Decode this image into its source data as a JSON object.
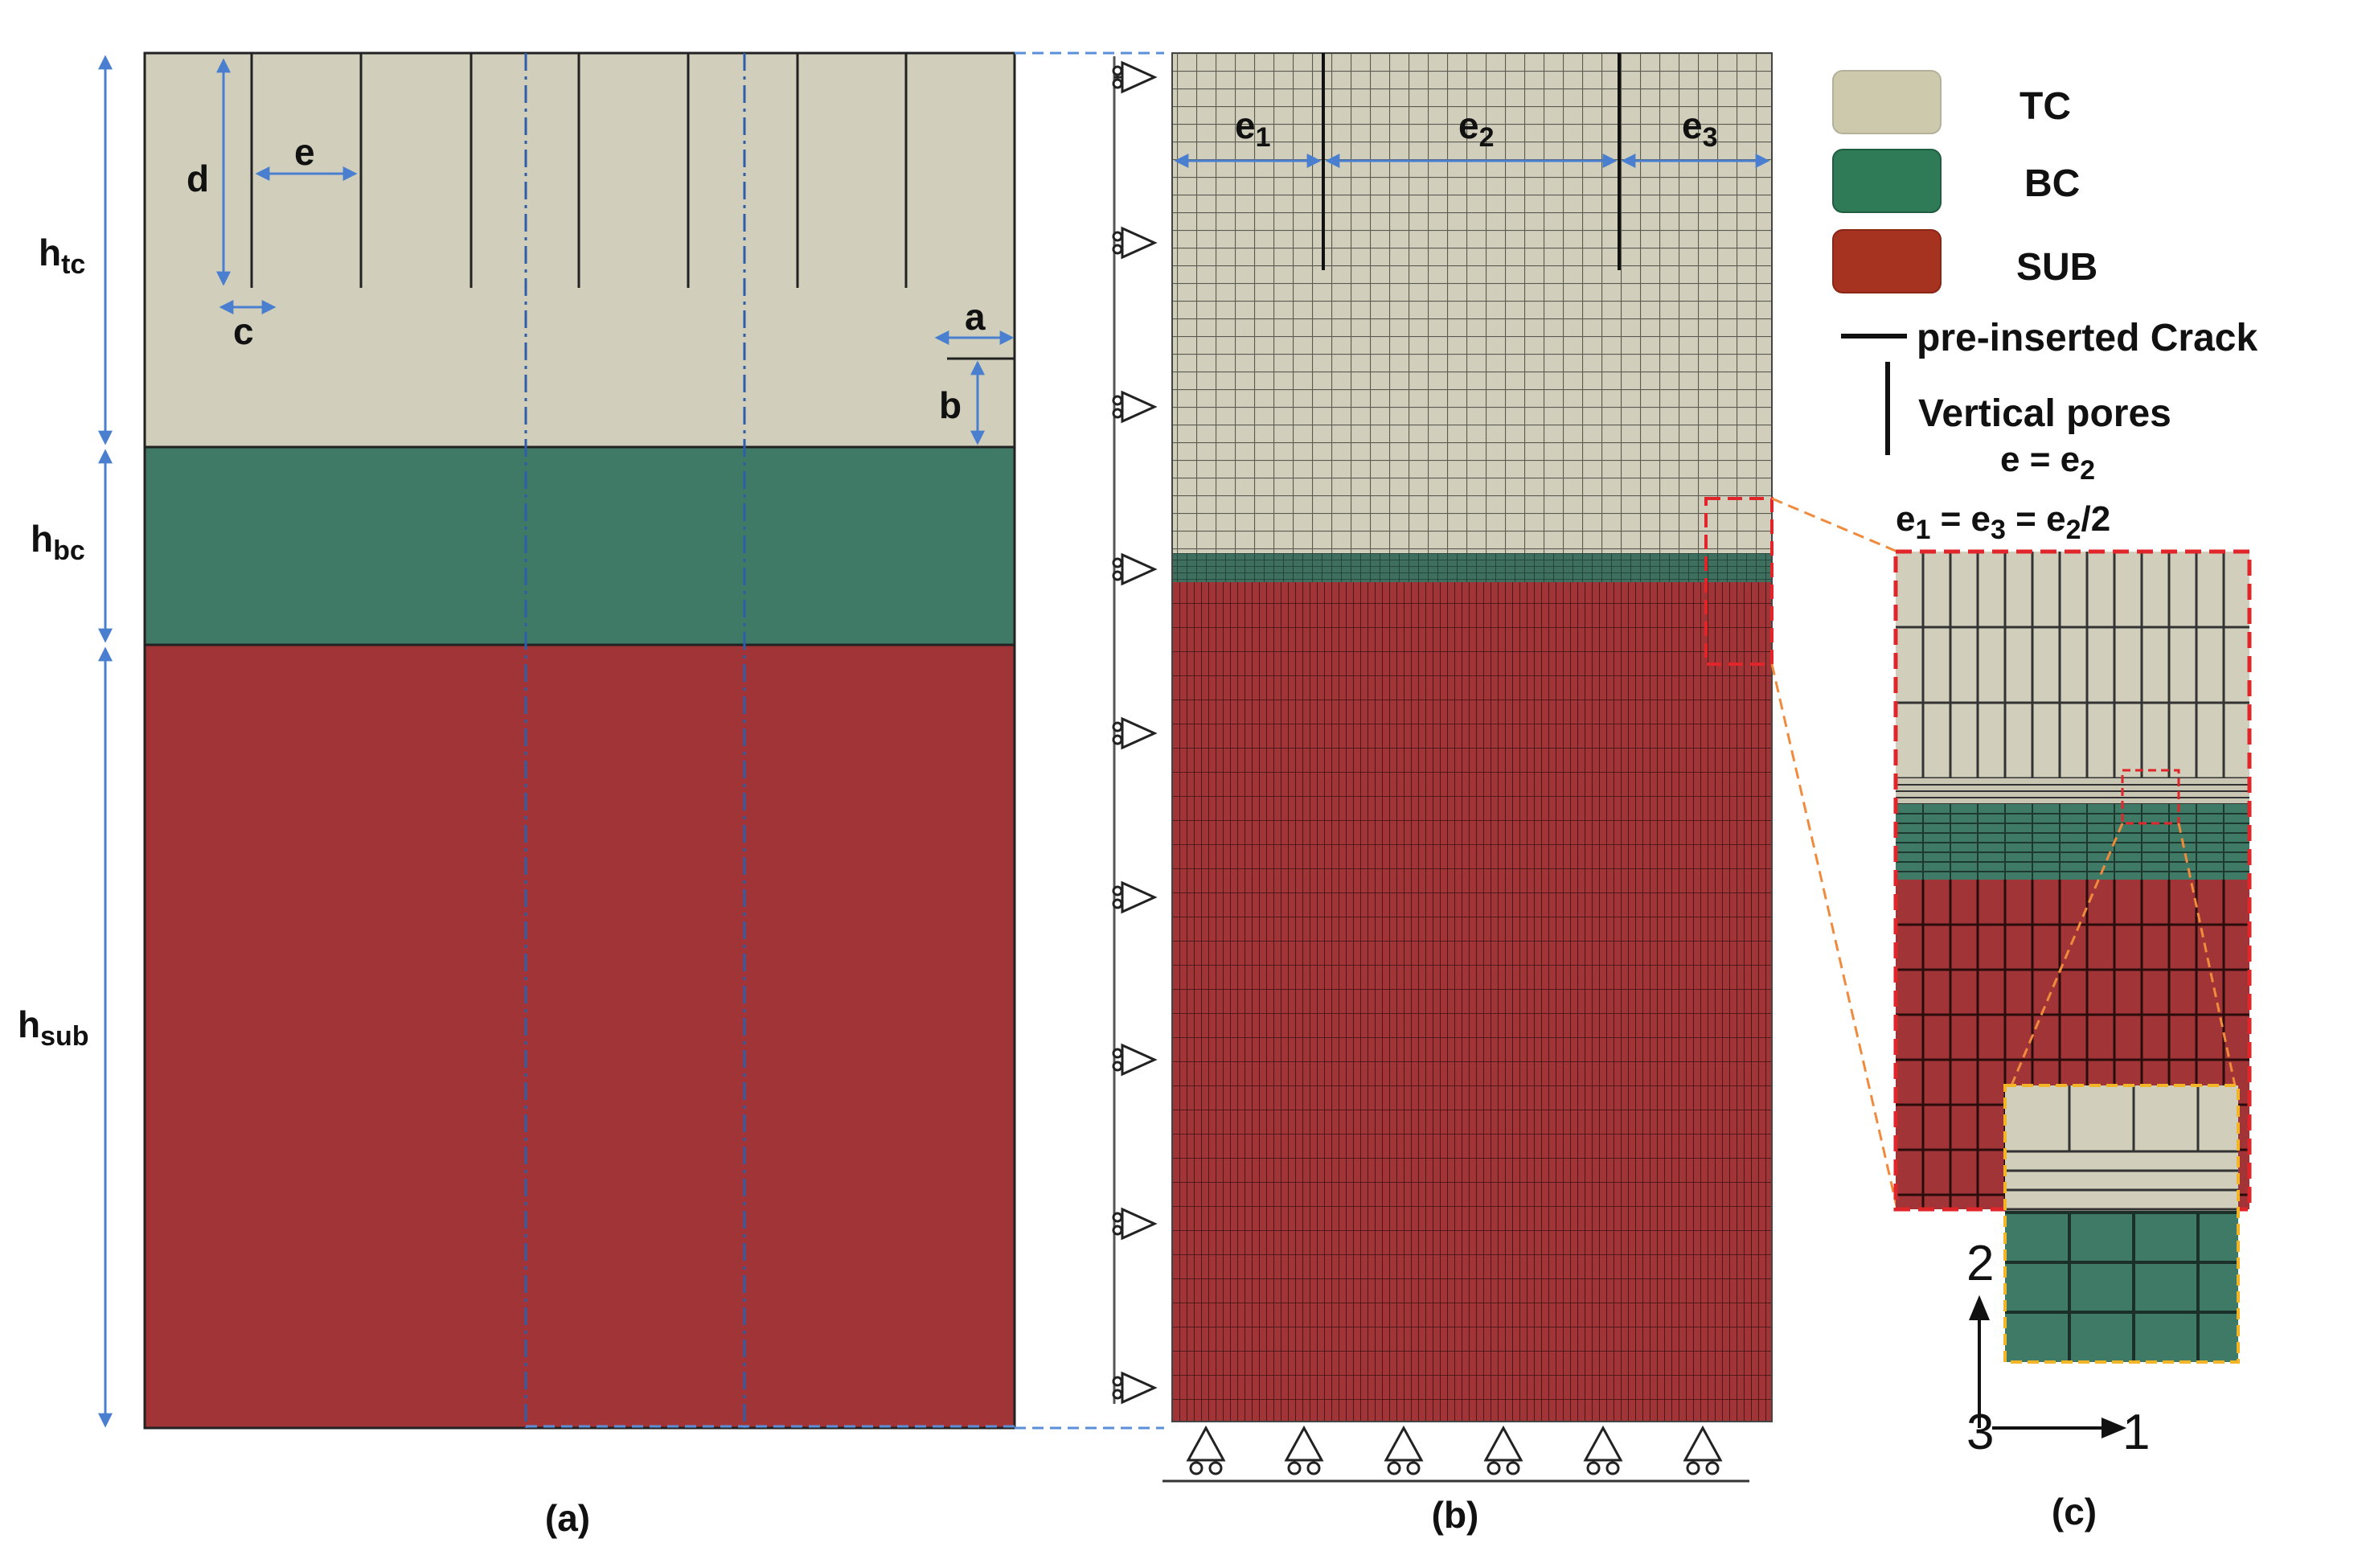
{
  "colors": {
    "tc": "#d1cfbb",
    "bc": "#3f7a66",
    "sub": "#a03436",
    "arrow": "#4a7fd0",
    "dash_blue": "#5b8fd8",
    "dash_red": "#e0262a",
    "dash_orange": "#f08a3c",
    "dash_yellow": "#f2b527",
    "legend_tc": "#cdc9ad",
    "legend_bc": "#2f7a57",
    "legend_sub": "#a63220"
  },
  "panel_a": {
    "caption": "(a)",
    "dims": {
      "h_tc": {
        "base": "h",
        "sub": "tc"
      },
      "h_bc": {
        "base": "h",
        "sub": "bc"
      },
      "h_sub": {
        "base": "h",
        "sub": "sub"
      },
      "d": "d",
      "e": "e",
      "c": "c",
      "a": "a",
      "b": "b"
    }
  },
  "panel_b": {
    "caption": "(b)",
    "spacings": [
      {
        "base": "e",
        "sub": "1"
      },
      {
        "base": "e",
        "sub": "2"
      },
      {
        "base": "e",
        "sub": "3"
      }
    ]
  },
  "panel_c": {
    "caption": "(c)",
    "axes": {
      "axis_2": "2",
      "axis_3": "3",
      "axis_1": "1"
    }
  },
  "legend": {
    "items": [
      {
        "label": "TC"
      },
      {
        "label": "BC"
      },
      {
        "label": "SUB"
      }
    ],
    "crack_label": "pre-inserted Crack",
    "pores_label": "Vertical pores",
    "eq1": {
      "left": "e = e",
      "sub": "2"
    },
    "eq2": {
      "e": "e",
      "s1": "1",
      "eq": " = e",
      "s3": "3",
      "eq2": " = e",
      "s2": "2",
      "tail": "/2"
    }
  }
}
